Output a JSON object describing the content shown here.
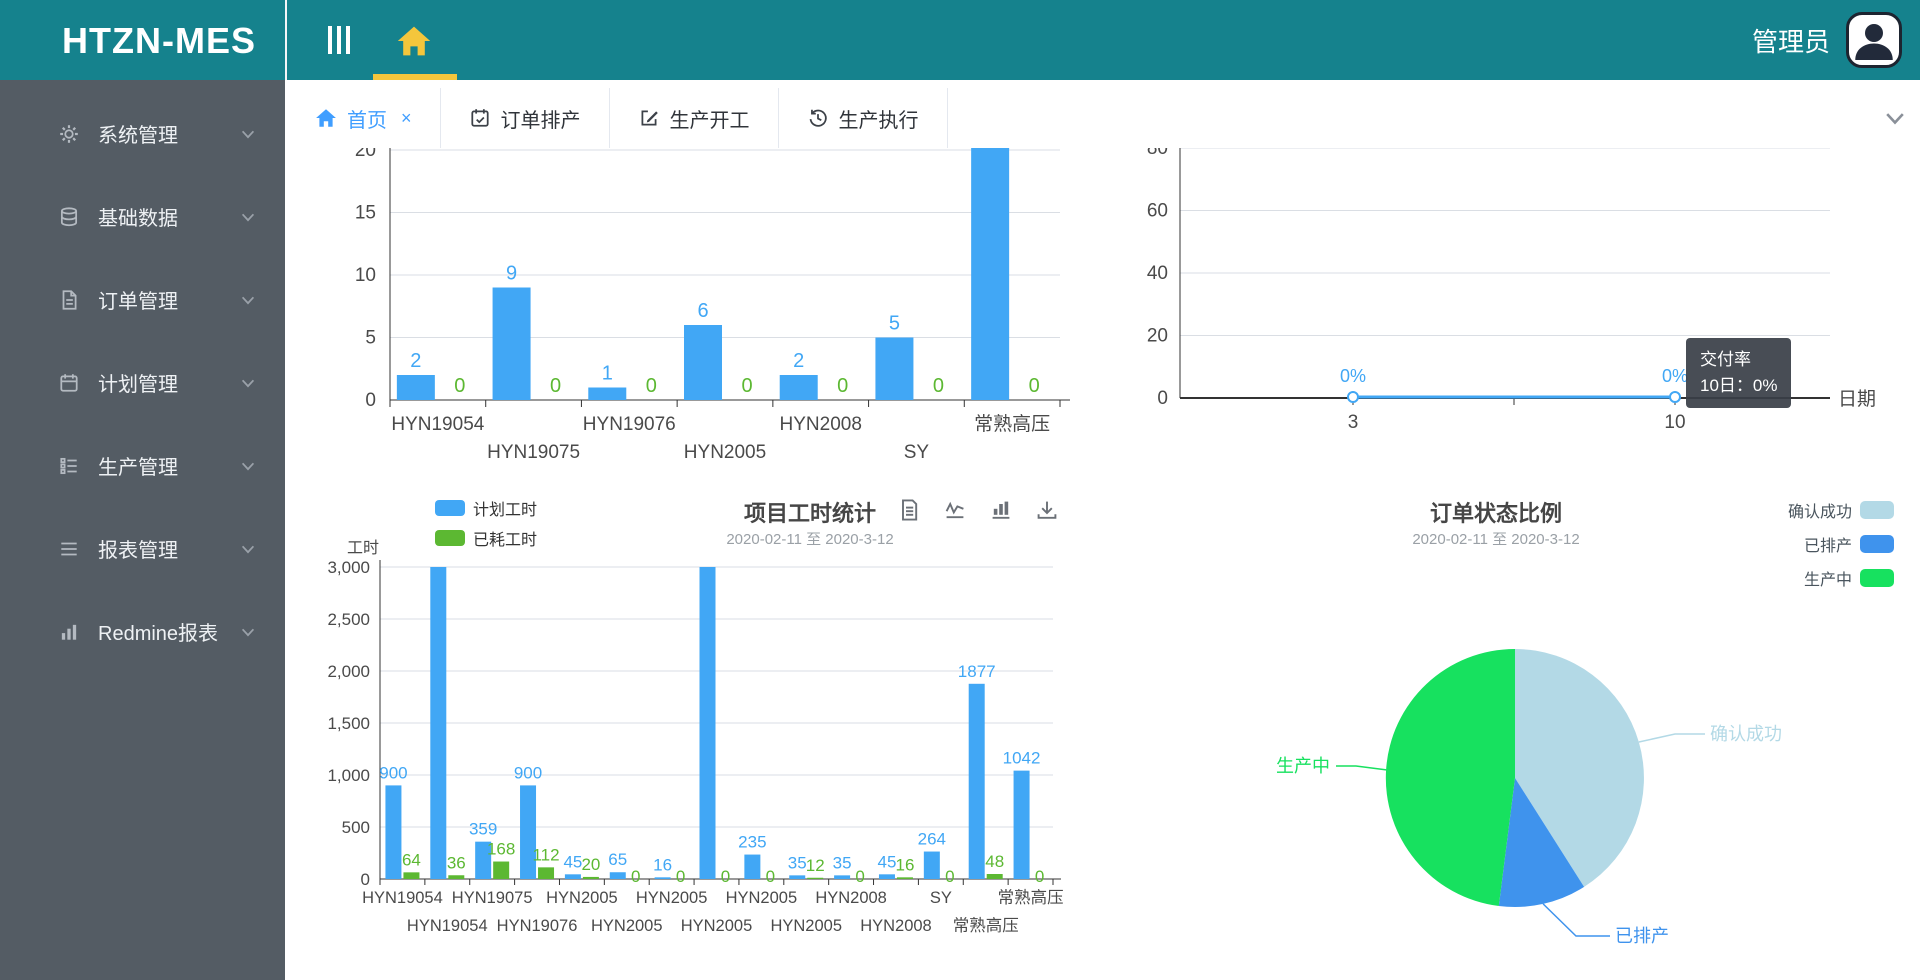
{
  "app": {
    "title": "HTZN-MES",
    "user": "管理员"
  },
  "header": {
    "icons": [
      "collapse-menu-icon",
      "home-icon",
      "user-avatar"
    ],
    "accent_yellow": "#f4c63c",
    "teal": "#15828d"
  },
  "sidebar": {
    "background": "#545c64",
    "items": [
      {
        "icon": "gear",
        "label": "系统管理"
      },
      {
        "icon": "database",
        "label": "基础数据"
      },
      {
        "icon": "document",
        "label": "订单管理"
      },
      {
        "icon": "calendar",
        "label": "计划管理"
      },
      {
        "icon": "tasks",
        "label": "生产管理"
      },
      {
        "icon": "list",
        "label": "报表管理"
      },
      {
        "icon": "bar-chart",
        "label": "Redmine报表"
      }
    ]
  },
  "tabs": [
    {
      "icon": "home",
      "label": "首页",
      "active": true,
      "closable": true
    },
    {
      "icon": "calendar-check",
      "label": "订单排产",
      "active": false,
      "closable": false
    },
    {
      "icon": "edit",
      "label": "生产开工",
      "active": false,
      "closable": false
    },
    {
      "icon": "history",
      "label": "生产执行",
      "active": false,
      "closable": false
    }
  ],
  "chart_data": [
    {
      "id": "order-quantity-bar",
      "type": "bar",
      "note": "Top of this chart (title/legend) is scrolled out of view; last blue bar is clipped at the top edge so its value label is not visible.",
      "categories": [
        "HYN19054",
        "HYN19075",
        "HYN19076",
        "HYN2005",
        "HYN2008",
        "SY",
        "常熟高压"
      ],
      "series": [
        {
          "name": "blue-series",
          "color": "#41a7f5",
          "values": [
            2,
            9,
            1,
            6,
            2,
            5,
            null
          ]
        },
        {
          "name": "green-series",
          "color": "#5cb832",
          "values": [
            0,
            0,
            0,
            0,
            0,
            0,
            0
          ]
        }
      ],
      "yticks": [
        0,
        5,
        10,
        15,
        20
      ],
      "ylim": [
        0,
        20
      ],
      "grid": true
    },
    {
      "id": "delivery-rate-line",
      "type": "line",
      "series": [
        {
          "name": "交付率",
          "color": "#41a7f5",
          "x": [
            3,
            10
          ],
          "values": [
            0,
            0
          ],
          "point_labels": [
            "0%",
            "0%"
          ]
        }
      ],
      "xticks": [
        "3",
        "10"
      ],
      "xlabel": "日期",
      "yticks": [
        0,
        20,
        40,
        60,
        80
      ],
      "ylim": [
        0,
        80
      ],
      "grid": true,
      "tooltip": {
        "title": "交付率",
        "line": "10日：0%"
      }
    },
    {
      "id": "project-hours-bar",
      "type": "bar",
      "title": "项目工时统计",
      "subtitle": "2020-02-11 至 2020-3-12",
      "ylabel": "工时",
      "legend": [
        {
          "label": "计划工时",
          "color": "#41a7f5"
        },
        {
          "label": "已耗工时",
          "color": "#5cb832"
        }
      ],
      "toolbox": [
        "data-view",
        "switch-line",
        "switch-bar",
        "save-image"
      ],
      "categories": [
        "HYN19054",
        "HYN19054",
        "HYN19075",
        "HYN19076",
        "HYN2005",
        "HYN2005",
        "HYN2005",
        "HYN2005",
        "HYN2005",
        "HYN2005",
        "HYN2008",
        "HYN2008",
        "SY",
        "常熟高压",
        "常熟高压"
      ],
      "series": [
        {
          "name": "计划工时",
          "color": "#41a7f5",
          "values": [
            900,
            3000,
            359,
            900,
            45,
            65,
            16,
            3000,
            235,
            35,
            35,
            45,
            264,
            1877,
            1042
          ]
        },
        {
          "name": "已耗工时",
          "color": "#5cb832",
          "values": [
            64,
            36,
            168,
            112,
            20,
            0,
            0,
            0,
            0,
            12,
            0,
            16,
            0,
            48,
            0
          ]
        }
      ],
      "yticks": [
        0,
        500,
        1000,
        1500,
        2000,
        2500,
        3000
      ],
      "ytick_labels": [
        "0",
        "500",
        "1,000",
        "1,500",
        "2,000",
        "2,500",
        "3,000"
      ],
      "ylim": [
        0,
        3000
      ],
      "grid": true
    },
    {
      "id": "order-status-pie",
      "type": "pie",
      "title": "订单状态比例",
      "subtitle": "2020-02-11 至 2020-3-12",
      "legend": [
        {
          "label": "确认成功",
          "color": "#b3d9e6"
        },
        {
          "label": "已排产",
          "color": "#3f93ed"
        },
        {
          "label": "生产中",
          "color": "#17e15f"
        }
      ],
      "slices": [
        {
          "name": "确认成功",
          "pct": 41,
          "color": "#b3d9e6"
        },
        {
          "name": "已排产",
          "pct": 11,
          "color": "#3f93ed"
        },
        {
          "name": "生产中",
          "pct": 48,
          "color": "#17e15f"
        }
      ],
      "note": "No numeric labels shown on pie; percentages estimated from slice angles."
    }
  ]
}
